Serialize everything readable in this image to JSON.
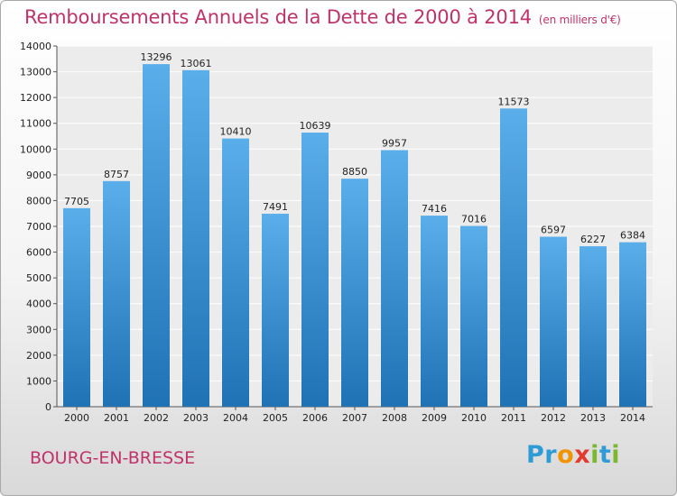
{
  "header": {
    "title": "Remboursements Annuels de la Dette de 2000 à 2014",
    "unit": "(en milliers d'€)"
  },
  "footer": {
    "city": "BOURG-EN-BRESSE",
    "logo": "Proxiti"
  },
  "colors": {
    "bar_light": "#5aaeea",
    "bar_dark": "#1f72b4",
    "title": "#c0336a"
  },
  "chart_data": {
    "type": "bar",
    "title": "Remboursements Annuels de la Dette de 2000 à 2014",
    "subtitle": "(en milliers d'€)",
    "xlabel": "",
    "ylabel": "",
    "categories": [
      "2000",
      "2001",
      "2002",
      "2003",
      "2004",
      "2005",
      "2006",
      "2007",
      "2008",
      "2009",
      "2010",
      "2011",
      "2012",
      "2013",
      "2014"
    ],
    "values": [
      7705,
      8757,
      13296,
      13061,
      10410,
      7491,
      10639,
      8850,
      9957,
      7416,
      7016,
      11573,
      6597,
      6227,
      6384
    ],
    "ylim": [
      0,
      14000
    ],
    "yticks": [
      0,
      1000,
      2000,
      3000,
      4000,
      5000,
      6000,
      7000,
      8000,
      9000,
      10000,
      11000,
      12000,
      13000,
      14000
    ],
    "grid": true,
    "legend": "none"
  }
}
